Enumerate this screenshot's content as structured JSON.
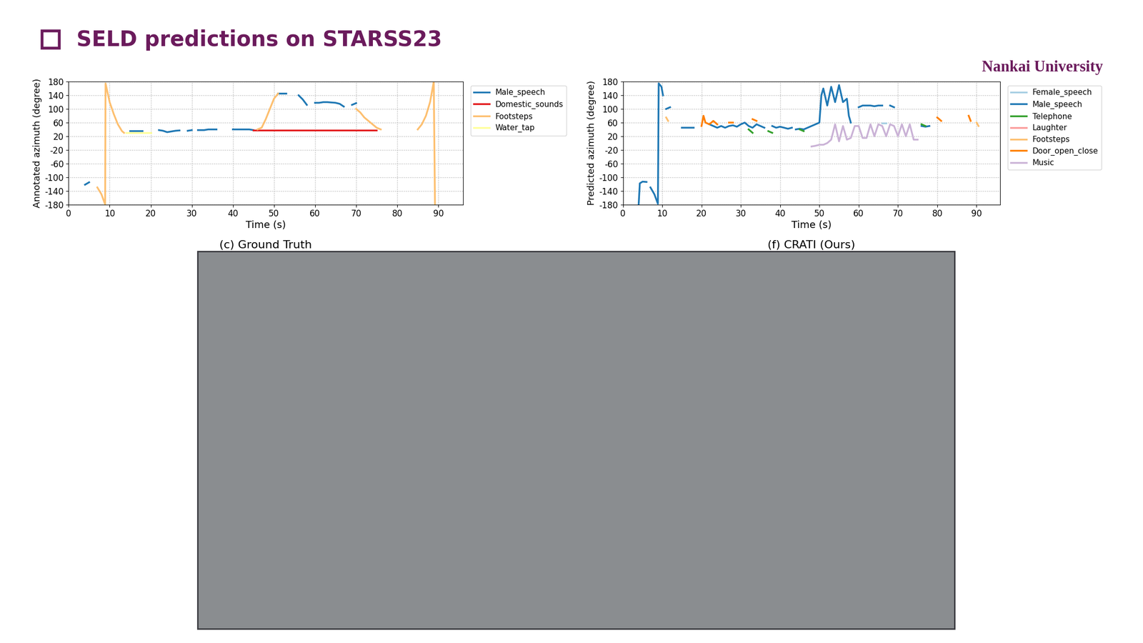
{
  "slide": {
    "title": "SELD predictions on STARSS23",
    "institution": "Nankai University"
  },
  "chart_data": [
    {
      "type": "line",
      "caption": "(c) Ground Truth",
      "x_label": "Time (s)",
      "y_label": "Annotated azimuth (degree)",
      "xlim": [
        0,
        96
      ],
      "ylim": [
        -180,
        180
      ],
      "xticks": [
        0,
        10,
        20,
        30,
        40,
        50,
        60,
        70,
        80,
        90
      ],
      "yticks": [
        -180,
        -140,
        -100,
        -60,
        -20,
        20,
        60,
        100,
        140,
        180
      ],
      "grid": true,
      "legend": "right",
      "series": [
        {
          "name": "Male_speech",
          "color": "#1f78b4",
          "x": [
            4,
            5,
            6,
            15,
            16,
            17,
            18,
            19,
            22,
            23,
            24,
            25,
            26,
            27,
            28,
            29,
            30,
            31,
            31.5,
            32,
            33,
            34,
            35,
            36,
            37,
            40,
            41,
            42,
            43,
            44,
            45,
            46,
            51,
            52,
            53,
            54,
            55,
            55.5,
            56,
            57,
            58,
            59,
            60,
            61,
            62,
            63,
            64,
            65,
            66,
            67,
            68,
            69,
            70
          ],
          "values": [
            -122,
            -115,
            null,
            35,
            35,
            35,
            35,
            null,
            38,
            36,
            32,
            34,
            36,
            37,
            null,
            36,
            38,
            null,
            38,
            38,
            38,
            40,
            40,
            40,
            null,
            40,
            40,
            40,
            40,
            40,
            38,
            null,
            145,
            145,
            145,
            null,
            147,
            null,
            140,
            128,
            112,
            null,
            118,
            118,
            120,
            120,
            119,
            118,
            115,
            107,
            null,
            112,
            117
          ]
        },
        {
          "name": "Domestic_sounds",
          "color": "#e31a1c",
          "x": [
            45,
            75
          ],
          "values": [
            38,
            38
          ]
        },
        {
          "name": "Footsteps",
          "color": "#fdbf6f",
          "x": [
            7,
            8,
            8.9,
            9,
            10,
            11,
            12,
            13,
            13.5,
            14,
            46,
            47,
            48,
            49,
            50,
            51,
            52,
            70,
            71,
            72,
            73,
            74,
            75,
            76,
            77,
            85,
            86,
            87,
            88,
            88.9,
            89.2
          ],
          "values": [
            -130,
            -150,
            -180,
            175,
            120,
            85,
            55,
            35,
            30,
            null,
            40,
            45,
            70,
            100,
            130,
            145,
            null,
            100,
            90,
            75,
            65,
            55,
            45,
            40,
            null,
            40,
            55,
            80,
            120,
            180,
            -180
          ]
        },
        {
          "name": "Water_tap",
          "color": "#ffff99",
          "x": [
            14,
            20
          ],
          "values": [
            30,
            30
          ]
        }
      ]
    },
    {
      "type": "line",
      "caption": "(f) CRATI (Ours)",
      "x_label": "Time (s)",
      "y_label": "Predicted azimuth (degree)",
      "xlim": [
        0,
        96
      ],
      "ylim": [
        -180,
        180
      ],
      "xticks": [
        0,
        10,
        20,
        30,
        40,
        50,
        60,
        70,
        80,
        90
      ],
      "yticks": [
        -180,
        -140,
        -100,
        -60,
        -20,
        20,
        60,
        100,
        140,
        180
      ],
      "grid": true,
      "legend": "right",
      "series": [
        {
          "name": "Female_speech",
          "color": "#a6cee3",
          "x": [
            66,
            67
          ],
          "values": [
            58,
            58
          ]
        },
        {
          "name": "Male_speech",
          "color": "#1f78b4",
          "x": [
            4,
            4.3,
            5,
            6,
            6.5,
            7,
            8,
            8.9,
            9.1,
            9.8,
            10.2,
            10.5,
            11,
            12,
            13,
            15,
            16,
            17,
            18,
            19,
            22,
            23,
            24,
            25,
            26,
            27,
            28,
            29,
            30,
            31,
            32,
            33,
            34,
            35,
            36,
            37,
            38,
            39,
            40,
            41,
            42,
            43,
            43.5,
            44,
            45,
            46,
            47,
            48,
            49,
            50,
            50.5,
            51,
            52,
            53,
            54,
            55,
            56,
            57,
            57.5,
            58,
            59,
            60,
            61,
            62,
            63,
            64,
            65,
            66,
            67,
            68,
            69,
            70,
            76,
            77,
            78
          ],
          "values": [
            -180,
            -118,
            -113,
            -114,
            null,
            -130,
            -150,
            -178,
            175,
            165,
            140,
            null,
            100,
            105,
            null,
            45,
            45,
            45,
            45,
            null,
            55,
            50,
            45,
            50,
            45,
            50,
            52,
            48,
            55,
            60,
            50,
            45,
            55,
            50,
            45,
            null,
            50,
            45,
            48,
            45,
            42,
            45,
            null,
            40,
            42,
            40,
            45,
            50,
            55,
            60,
            140,
            160,
            110,
            165,
            120,
            170,
            120,
            130,
            80,
            60,
            null,
            105,
            110,
            110,
            110,
            108,
            110,
            110,
            null,
            110,
            105,
            null,
            50,
            48,
            50
          ]
        },
        {
          "name": "Telephone",
          "color": "#33a02c",
          "x": [
            32,
            33,
            34,
            37,
            38,
            39,
            45,
            46,
            47,
            76,
            77
          ],
          "values": [
            40,
            30,
            null,
            35,
            30,
            null,
            40,
            35,
            null,
            55,
            50
          ]
        },
        {
          "name": "Laughter",
          "color": "#fb9a99",
          "x": [],
          "values": []
        },
        {
          "name": "Footsteps",
          "color": "#fdbf6f",
          "x": [
            11,
            11.5,
            12,
            90,
            90.5
          ],
          "values": [
            75,
            65,
            null,
            60,
            50
          ]
        },
        {
          "name": "Door_open_close",
          "color": "#ff7f00",
          "x": [
            20,
            20.5,
            21,
            22,
            23,
            24,
            25,
            27,
            28,
            29,
            33,
            34,
            35,
            80,
            81,
            82,
            88,
            88.5
          ],
          "values": [
            50,
            80,
            60,
            55,
            65,
            55,
            null,
            60,
            60,
            null,
            70,
            65,
            null,
            75,
            65,
            null,
            80,
            65
          ]
        },
        {
          "name": "Music",
          "color": "#cab2d6",
          "x": [
            48,
            49,
            50,
            51,
            52,
            53,
            54,
            55,
            56,
            57,
            58,
            59,
            60,
            61,
            62,
            63,
            64,
            65,
            66,
            67,
            68,
            69,
            70,
            71,
            72,
            73,
            74,
            75
          ],
          "values": [
            -10,
            -8,
            -5,
            -5,
            0,
            10,
            55,
            5,
            50,
            10,
            15,
            50,
            50,
            15,
            15,
            55,
            20,
            55,
            50,
            20,
            55,
            50,
            20,
            55,
            20,
            55,
            10,
            10
          ]
        }
      ]
    }
  ]
}
